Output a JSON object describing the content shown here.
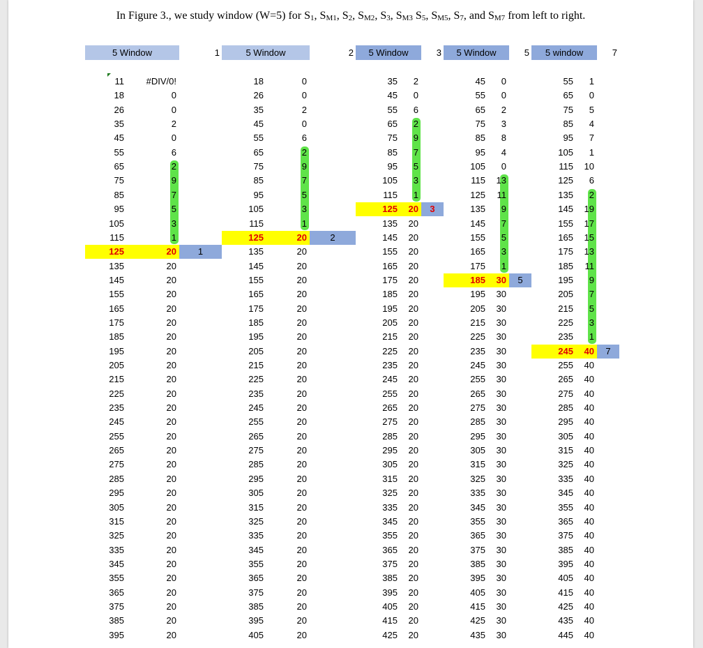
{
  "caption": {
    "pre": "In Figure 3., we study window (W=5) for S",
    "s1": "1",
    "p1": ", S",
    "m1": "M1",
    "p2": ", S",
    "s2": "2",
    "p3": ", S",
    "m2": "M2",
    "p4": ", S",
    "s3": "3",
    "p5": ", S",
    "m3": "M3",
    "p6": " S",
    "s5": "5",
    "p7": ", S",
    "m5": "M5",
    "p8": ", S",
    "s7": "7",
    "p9": ", and S",
    "m7": "M7",
    "post": " from left to right."
  },
  "colors": {
    "header_light": "#b4c6e7",
    "header_dark": "#8ea9db",
    "highlight_yellow": "#ffff00",
    "marker_blue": "#8ea9db",
    "green_mark": "#4ee035",
    "red_text": "#e00000"
  },
  "headers": [
    {
      "label": "5 Window",
      "num": "1"
    },
    {
      "label": "5 Window",
      "num": "2"
    },
    {
      "label": "5 Window",
      "num": "3"
    },
    {
      "label": "5 Window",
      "num": "5"
    },
    {
      "label": "5 window",
      "num": "7"
    }
  ],
  "groups": [
    {
      "series": [
        "11",
        "18",
        "26",
        "35",
        "45",
        "55",
        "65",
        "75",
        "85",
        "95",
        "105",
        "115",
        "125",
        "135",
        "145",
        "155",
        "165",
        "175",
        "185",
        "195",
        "205",
        "215",
        "225",
        "235",
        "245",
        "255",
        "265",
        "275",
        "285",
        "295",
        "305",
        "315",
        "325",
        "335",
        "345",
        "355",
        "365",
        "375",
        "385",
        "395"
      ],
      "values": [
        "#DIV/0!",
        "0",
        "0",
        "2",
        "0",
        "6",
        "2",
        "9",
        "7",
        "5",
        "3",
        "1",
        "20",
        "20",
        "20",
        "20",
        "20",
        "20",
        "20",
        "20",
        "20",
        "20",
        "20",
        "20",
        "20",
        "20",
        "20",
        "20",
        "20",
        "20",
        "20",
        "20",
        "20",
        "20",
        "20",
        "20",
        "20",
        "20",
        "20",
        "20"
      ],
      "highlight_row": 12,
      "marker": "1",
      "green_from": 6,
      "green_to": 11
    },
    {
      "series": [
        "18",
        "26",
        "35",
        "45",
        "55",
        "65",
        "75",
        "85",
        "95",
        "105",
        "115",
        "125",
        "135",
        "145",
        "155",
        "165",
        "175",
        "185",
        "195",
        "205",
        "215",
        "225",
        "235",
        "245",
        "255",
        "265",
        "275",
        "285",
        "295",
        "305",
        "315",
        "325",
        "335",
        "345",
        "355",
        "365",
        "375",
        "385",
        "395",
        "405"
      ],
      "values": [
        "0",
        "0",
        "2",
        "0",
        "6",
        "2",
        "9",
        "7",
        "5",
        "3",
        "1",
        "20",
        "20",
        "20",
        "20",
        "20",
        "20",
        "20",
        "20",
        "20",
        "20",
        "20",
        "20",
        "20",
        "20",
        "20",
        "20",
        "20",
        "20",
        "20",
        "20",
        "20",
        "20",
        "20",
        "20",
        "20",
        "20",
        "20",
        "20",
        "20"
      ],
      "highlight_row": 11,
      "marker": "2",
      "green_from": 5,
      "green_to": 10
    },
    {
      "series": [
        "35",
        "45",
        "55",
        "65",
        "75",
        "85",
        "95",
        "105",
        "115",
        "125",
        "135",
        "145",
        "155",
        "165",
        "175",
        "185",
        "195",
        "205",
        "215",
        "225",
        "235",
        "245",
        "255",
        "265",
        "275",
        "285",
        "295",
        "305",
        "315",
        "325",
        "335",
        "345",
        "355",
        "365",
        "375",
        "385",
        "395",
        "405",
        "415",
        "425"
      ],
      "values": [
        "2",
        "0",
        "6",
        "2",
        "9",
        "7",
        "5",
        "3",
        "1",
        "20",
        "20",
        "20",
        "20",
        "20",
        "20",
        "20",
        "20",
        "20",
        "20",
        "20",
        "20",
        "20",
        "20",
        "20",
        "20",
        "20",
        "20",
        "20",
        "20",
        "20",
        "20",
        "20",
        "20",
        "20",
        "20",
        "20",
        "20",
        "20",
        "20",
        "20"
      ],
      "highlight_row": 9,
      "marker": "3",
      "green_from": 3,
      "green_to": 8
    },
    {
      "series": [
        "45",
        "55",
        "65",
        "75",
        "85",
        "95",
        "105",
        "115",
        "125",
        "135",
        "145",
        "155",
        "165",
        "175",
        "185",
        "195",
        "205",
        "215",
        "225",
        "235",
        "245",
        "255",
        "265",
        "275",
        "285",
        "295",
        "305",
        "315",
        "325",
        "335",
        "345",
        "355",
        "365",
        "375",
        "385",
        "395",
        "405",
        "415",
        "425",
        "435"
      ],
      "values": [
        "0",
        "0",
        "2",
        "3",
        "8",
        "4",
        "0",
        "13",
        "11",
        "9",
        "7",
        "5",
        "3",
        "1",
        "30",
        "30",
        "30",
        "30",
        "30",
        "30",
        "30",
        "30",
        "30",
        "30",
        "30",
        "30",
        "30",
        "30",
        "30",
        "30",
        "30",
        "30",
        "30",
        "30",
        "30",
        "30",
        "30",
        "30",
        "30",
        "30"
      ],
      "highlight_row": 14,
      "marker": "5",
      "green_from": 7,
      "green_to": 13
    },
    {
      "series": [
        "55",
        "65",
        "75",
        "85",
        "95",
        "105",
        "115",
        "125",
        "135",
        "145",
        "155",
        "165",
        "175",
        "185",
        "195",
        "205",
        "215",
        "225",
        "235",
        "245",
        "255",
        "265",
        "275",
        "285",
        "295",
        "305",
        "315",
        "325",
        "335",
        "345",
        "355",
        "365",
        "375",
        "385",
        "395",
        "405",
        "415",
        "425",
        "435",
        "445"
      ],
      "values": [
        "1",
        "0",
        "5",
        "4",
        "7",
        "1",
        "10",
        "6",
        "2",
        "19",
        "17",
        "15",
        "13",
        "11",
        "9",
        "7",
        "5",
        "3",
        "1",
        "40",
        "40",
        "40",
        "40",
        "40",
        "40",
        "40",
        "40",
        "40",
        "40",
        "40",
        "40",
        "40",
        "40",
        "40",
        "40",
        "40",
        "40",
        "40",
        "40",
        "40"
      ],
      "highlight_row": 19,
      "marker": "7",
      "green_from": 8,
      "green_to": 18
    }
  ]
}
